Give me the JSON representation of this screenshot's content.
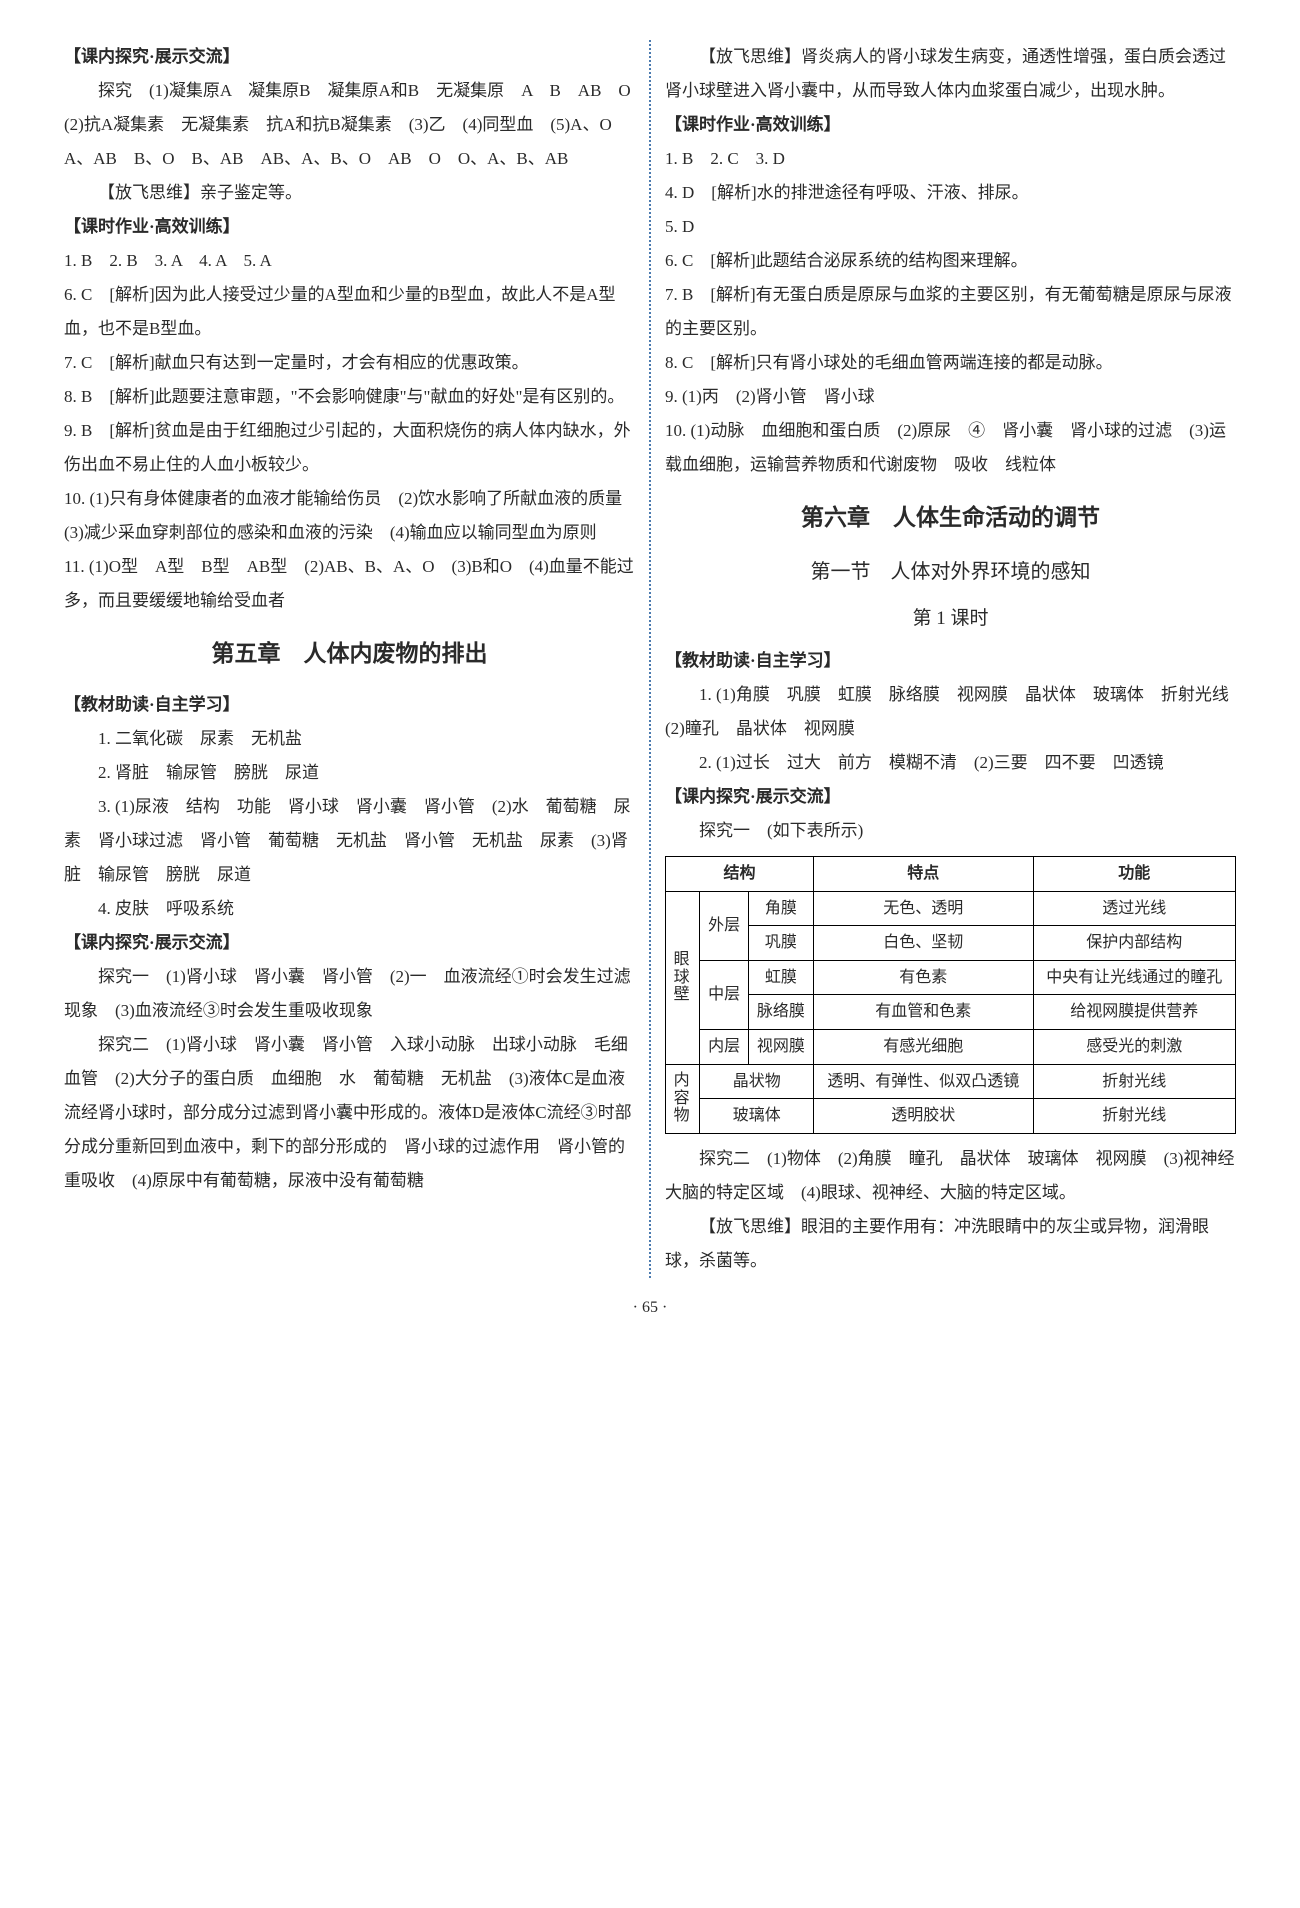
{
  "page_number": "· 65 ·",
  "left": {
    "s1_head": "【课内探究·展示交流】",
    "s1_p1": "探究　(1)凝集原A　凝集原B　凝集原A和B　无凝集原　A　B　AB　O　(2)抗A凝集素　无凝集素　抗A和抗B凝集素　(3)乙　(4)同型血　(5)A、O　A、AB　B、O　B、AB　AB、A、B、O　AB　O　O、A、B、AB",
    "s1_p2": "【放飞思维】亲子鉴定等。",
    "s2_head": "【课时作业·高效训练】",
    "s2_l1": "1. B　2. B　3. A　4. A　5. A",
    "s2_l6": "6. C　[解析]因为此人接受过少量的A型血和少量的B型血，故此人不是A型血，也不是B型血。",
    "s2_l7": "7. C　[解析]献血只有达到一定量时，才会有相应的优惠政策。",
    "s2_l8": "8. B　[解析]此题要注意审题，\"不会影响健康\"与\"献血的好处\"是有区别的。",
    "s2_l9": "9. B　[解析]贫血是由于红细胞过少引起的，大面积烧伤的病人体内缺水，外伤出血不易止住的人血小板较少。",
    "s2_l10": "10. (1)只有身体健康者的血液才能输给伤员　(2)饮水影响了所献血液的质量　(3)减少采血穿刺部位的感染和血液的污染　(4)输血应以输同型血为原则",
    "s2_l11": "11. (1)O型　A型　B型　AB型　(2)AB、B、A、O　(3)B和O　(4)血量不能过多，而且要缓缓地输给受血者",
    "ch5_title": "第五章　人体内废物的排出",
    "s3_head": "【教材助读·自主学习】",
    "s3_p1": "1. 二氧化碳　尿素　无机盐",
    "s3_p2": "2. 肾脏　输尿管　膀胱　尿道",
    "s3_p3": "3. (1)尿液　结构　功能　肾小球　肾小囊　肾小管　(2)水　葡萄糖　尿素　肾小球过滤　肾小管　葡萄糖　无机盐　肾小管　无机盐　尿素　(3)肾脏　输尿管　膀胱　尿道",
    "s3_p4": "4. 皮肤　呼吸系统",
    "s4_head": "【课内探究·展示交流】",
    "s4_p1": "探究一　(1)肾小球　肾小囊　肾小管　(2)一　血液流经①时会发生过滤现象　(3)血液流经③时会发生重吸收现象",
    "s4_p2": "探究二　(1)肾小球　肾小囊　肾小管　入球小动脉　出球小动脉　毛细血管　(2)大分子的蛋白质　血细胞　水　葡萄糖　无机盐　(3)液体C是血液流经肾小球时，部分成分过滤到肾小囊中形成的。液体D是液体C流经③时部分成分重新回到血液中，剩下的部分形成的　肾小球的过滤作用　肾小管的重吸收　(4)原尿中有葡萄糖，尿液中没有葡萄糖"
  },
  "right": {
    "r1": "【放飞思维】肾炎病人的肾小球发生病变，通透性增强，蛋白质会透过肾小球壁进入肾小囊中，从而导致人体内血浆蛋白减少，出现水肿。",
    "r2_head": "【课时作业·高效训练】",
    "r2_l1": "1. B　2. C　3. D",
    "r2_l4": "4. D　[解析]水的排泄途径有呼吸、汗液、排尿。",
    "r2_l5": "5. D",
    "r2_l6": "6. C　[解析]此题结合泌尿系统的结构图来理解。",
    "r2_l7": "7. B　[解析]有无蛋白质是原尿与血浆的主要区别，有无葡萄糖是原尿与尿液的主要区别。",
    "r2_l8": "8. C　[解析]只有肾小球处的毛细血管两端连接的都是动脉。",
    "r2_l9": "9. (1)丙　(2)肾小管　肾小球",
    "r2_l10": "10. (1)动脉　血细胞和蛋白质　(2)原尿　④　肾小囊　肾小球的过滤　(3)运载血细胞，运输营养物质和代谢废物　吸收　线粒体",
    "ch6_title": "第六章　人体生命活动的调节",
    "sec1_title": "第一节　人体对外界环境的感知",
    "lesson1": "第 1 课时",
    "r3_head": "【教材助读·自主学习】",
    "r3_p1": "1. (1)角膜　巩膜　虹膜　脉络膜　视网膜　晶状体　玻璃体　折射光线　(2)瞳孔　晶状体　视网膜",
    "r3_p2": "2. (1)过长　过大　前方　模糊不清　(2)三要　四不要　凹透镜",
    "r4_head": "【课内探究·展示交流】",
    "r4_p1": "探究一　(如下表所示)",
    "table": {
      "head": {
        "c1": "结构",
        "c2": "特点",
        "c3": "功能"
      },
      "wall": "眼球壁",
      "outer": "外层",
      "mid": "中层",
      "inner": "内层",
      "content": "内容物",
      "rows": [
        {
          "a": "角膜",
          "b": "无色、透明",
          "c": "透过光线"
        },
        {
          "a": "巩膜",
          "b": "白色、坚韧",
          "c": "保护内部结构"
        },
        {
          "a": "虹膜",
          "b": "有色素",
          "c": "中央有让光线通过的瞳孔"
        },
        {
          "a": "脉络膜",
          "b": "有血管和色素",
          "c": "给视网膜提供营养"
        },
        {
          "a": "视网膜",
          "b": "有感光细胞",
          "c": "感受光的刺激"
        },
        {
          "a": "晶状物",
          "b": "透明、有弹性、似双凸透镜",
          "c": "折射光线"
        },
        {
          "a": "玻璃体",
          "b": "透明胶状",
          "c": "折射光线"
        }
      ]
    },
    "r4_p2": "探究二　(1)物体　(2)角膜　瞳孔　晶状体　玻璃体　视网膜　(3)视神经　大脑的特定区域　(4)眼球、视神经、大脑的特定区域。",
    "r5": "【放飞思维】眼泪的主要作用有：冲洗眼睛中的灰尘或异物，润滑眼球，杀菌等。"
  }
}
